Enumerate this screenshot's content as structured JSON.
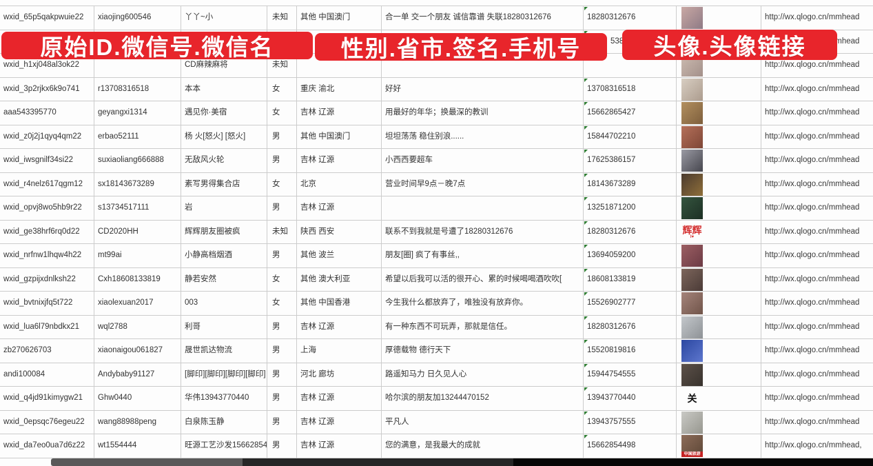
{
  "banners": {
    "left": "原始ID.微信号.微信名",
    "middle": "性别.省市.签名.手机号",
    "right": "头像.头像链接",
    "color": "#e8252b",
    "text_color": "#ffffff"
  },
  "progress_bar": {
    "segment_colors": [
      "#595959",
      "#262626",
      "#060606"
    ]
  },
  "table": {
    "grid_color": "#cccccc",
    "comment_marker_color": "#2e7d32",
    "rows": [
      {
        "wxid": "wxid_65p5qakpwuie22",
        "wechat_id": "xiaojing600546",
        "name": "丫丫~小",
        "gender": "未知",
        "region": "其他 中国澳门",
        "signature": "合一单 交一个朋友 诚信靠谱 失联18280312676",
        "phone": "18280312676",
        "link": "http://wx.qlogo.cn/mmhead",
        "avatar": {
          "kind": "photo",
          "c1": "#c9a8a4",
          "c2": "#8e7a85"
        }
      },
      {
        "wxid": "",
        "wechat_id": "",
        "name": "",
        "gender": "",
        "region": "",
        "signature": "",
        "phone": "5386",
        "phone_pad": 34,
        "link": "http://wx.qlogo.cn/mmhead",
        "avatar": {
          "kind": "photo",
          "c1": "#8fa3bd",
          "c2": "#60789a"
        }
      },
      {
        "wxid": "wxid_h1xj048al3ok22",
        "wechat_id": "",
        "name": "CD麻辣麻将",
        "gender": "未知",
        "region": "",
        "signature": "",
        "phone": "",
        "link": "http://wx.qlogo.cn/mmhead",
        "avatar": {
          "kind": "photo",
          "c1": "#cdbcb1",
          "c2": "#a3908a"
        }
      },
      {
        "wxid": "wxid_3p2rjkx6k9o741",
        "wechat_id": "r13708316518",
        "name": "本本",
        "gender": "女",
        "region": "重庆 渝北",
        "signature": "好好",
        "phone": "13708316518",
        "link": "http://wx.qlogo.cn/mmhead",
        "avatar": {
          "kind": "photo",
          "c1": "#d8cec2",
          "c2": "#ac9c8e"
        }
      },
      {
        "wxid": "aaa543395770",
        "wechat_id": "geyangxi1314",
        "name": "遇见你·美宿",
        "gender": "女",
        "region": "吉林 辽源",
        "signature": "用最好的年华；换最深的教训",
        "phone": "15662865427",
        "link": "http://wx.qlogo.cn/mmhead",
        "avatar": {
          "kind": "photo",
          "c1": "#b3905f",
          "c2": "#7d5e3c"
        }
      },
      {
        "wxid": "wxid_z0j2j1qyq4qm22",
        "wechat_id": "erbao52111",
        "name": "杨 火[怒火] [怒火]",
        "gender": "男",
        "region": "其他 中国澳门",
        "signature": "坦坦荡荡 稳住别浪......",
        "phone": "15844702210",
        "link": "http://wx.qlogo.cn/mmhead",
        "avatar": {
          "kind": "photo",
          "c1": "#b5705a",
          "c2": "#7e4636"
        }
      },
      {
        "wxid": "wxid_iwsgnilf34si22",
        "wechat_id": "suxiaoliang666888",
        "name": "无敌风火轮",
        "gender": "男",
        "region": "吉林 辽源",
        "signature": "小西西要超车",
        "phone": "17625386157",
        "link": "http://wx.qlogo.cn/mmhead",
        "avatar": {
          "kind": "photo",
          "c1": "#9a9aa3",
          "c2": "#46464e"
        }
      },
      {
        "wxid": "wxid_r4nelz617qgm12",
        "wechat_id": "sx18143673289",
        "name": "素写男得集合店",
        "gender": "女",
        "region": "北京",
        "signature": "营业时间早9点－晚7点",
        "phone": "18143673289",
        "link": "http://wx.qlogo.cn/mmhead",
        "avatar": {
          "kind": "photo",
          "c1": "#4a3a2e",
          "c2": "#8f6f3a"
        }
      },
      {
        "wxid": "wxid_opvj8wo5hb9r22",
        "wechat_id": "s13734517111",
        "name": "岩",
        "gender": "男",
        "region": "吉林 辽源",
        "signature": "",
        "phone": "13251871200",
        "link": "http://wx.qlogo.cn/mmhead",
        "avatar": {
          "kind": "photo",
          "c1": "#35553f",
          "c2": "#1c2f24"
        }
      },
      {
        "wxid": "wxid_ge38hrf6rq0d22",
        "wechat_id": "CD2020HH",
        "name": "辉辉朋友圈被疯",
        "gender": "未知",
        "region": "陕西 西安",
        "signature": "联系不到我就是号遭了18280312676",
        "phone": "18280312676",
        "link": "http://wx.qlogo.cn/mmhead",
        "avatar": {
          "kind": "text",
          "text": "辉辉",
          "text_color": "#d43030",
          "sub": "I♥"
        }
      },
      {
        "wxid": "wxid_nrfnw1lhqw4h22",
        "wechat_id": "mt99ai",
        "name": "小静高档烟酒",
        "gender": "男",
        "region": "其他 波兰",
        "signature": "朋友[圈] 疯了有事丝,,",
        "phone": "13694059200",
        "link": "http://wx.qlogo.cn/mmhead",
        "avatar": {
          "kind": "photo",
          "c1": "#9c5f63",
          "c2": "#6b3a44"
        }
      },
      {
        "wxid": "wxid_gzpijxdnlksh22",
        "wechat_id": "Cxh18608133819",
        "name": "静若安然",
        "gender": "女",
        "region": "其他 澳大利亚",
        "signature": "希望以后我可以活的很开心、累的时候喝喝酒吹吹[",
        "phone": "18608133819",
        "link": "http://wx.qlogo.cn/mmhead",
        "avatar": {
          "kind": "photo",
          "c1": "#7d665c",
          "c2": "#4b3b37"
        }
      },
      {
        "wxid": "wxid_bvtnixjfq5t722",
        "wechat_id": "xiaolexuan2017",
        "name": "003",
        "gender": "女",
        "region": "其他 中国香港",
        "signature": "今生我什么都放弃了，唯独没有放弃你。",
        "phone": "15526902777",
        "link": "http://wx.qlogo.cn/mmhead",
        "avatar": {
          "kind": "photo",
          "c1": "#a5847b",
          "c2": "#705449"
        }
      },
      {
        "wxid": "wxid_lua6l79nbdkx21",
        "wechat_id": "wql2788",
        "name": "利哥",
        "gender": "男",
        "region": "吉林 辽源",
        "signature": "有一种东西不可玩弄，那就是信任。",
        "phone": "18280312676",
        "link": "http://wx.qlogo.cn/mmhead",
        "avatar": {
          "kind": "photo",
          "c1": "#c3c7cb",
          "c2": "#8e9296"
        }
      },
      {
        "wxid": "zb270626703",
        "wechat_id": "xiaonaigou061827",
        "name": "晟世凯达物流",
        "gender": "男",
        "region": "上海",
        "signature": "厚德载物 德行天下",
        "phone": "15520819816",
        "link": "http://wx.qlogo.cn/mmhead",
        "avatar": {
          "kind": "photo",
          "c1": "#2b47a1",
          "c2": "#5d76cd"
        }
      },
      {
        "wxid": "andi100084",
        "wechat_id": "Andybaby91127",
        "name": "[脚印][脚印][脚印][脚印]",
        "gender": "男",
        "region": "河北 廊坊",
        "signature": "路遥知马力 日久见人心",
        "phone": "15944754555",
        "link": "http://wx.qlogo.cn/mmhead",
        "avatar": {
          "kind": "photo",
          "c1": "#5c5149",
          "c2": "#38322d"
        }
      },
      {
        "wxid": "wxid_q4jd91kimygw21",
        "wechat_id": "Ghw0440",
        "name": "华伟13943770440",
        "gender": "男",
        "region": "吉林 辽源",
        "signature": "哈尔滨的朋友加13244470152",
        "phone": "13943770440",
        "link": "http://wx.qlogo.cn/mmhead",
        "avatar": {
          "kind": "text",
          "text": "关",
          "text_color": "#111111",
          "sub": ""
        }
      },
      {
        "wxid": "wxid_0epsqc76egeu22",
        "wechat_id": "wang88988peng",
        "name": "白泉陈玉静",
        "gender": "男",
        "region": "吉林 辽源",
        "signature": "平凡人",
        "phone": "13943757555",
        "link": "http://wx.qlogo.cn/mmhead",
        "avatar": {
          "kind": "photo",
          "c1": "#c9c9c5",
          "c2": "#97978f"
        }
      },
      {
        "wxid": "wxid_da7eo0ua7d6z22",
        "wechat_id": "wt1554444",
        "name": "旺源工艺沙发15662854",
        "gender": "男",
        "region": "吉林 辽源",
        "signature": "您的满意，是我最大的成就",
        "phone": "15662854498",
        "link": "http://wx.qlogo.cn/mmhead,",
        "avatar": {
          "kind": "photo",
          "c1": "#8d6c59",
          "c2": "#5c4636",
          "band": "#c42222",
          "band_text": "中国旅游"
        }
      },
      {
        "wxid": "",
        "wechat_id": "",
        "name": "",
        "gender": "",
        "region": "",
        "signature": "",
        "phone": "",
        "link": "",
        "avatar": {
          "kind": "photo",
          "c1": "#4f74b5",
          "c2": "#2d4d8a"
        }
      }
    ]
  }
}
